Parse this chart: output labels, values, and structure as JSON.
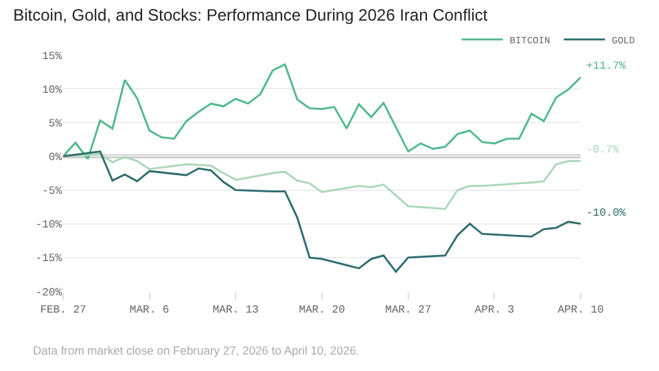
{
  "chart_data": {
    "type": "line",
    "title": "Bitcoin, Gold, and Stocks: Performance During 2026 Iran Conflict",
    "xlim": [
      "2026-02-27",
      "2026-04-10"
    ],
    "xticks": [
      {
        "value": "2026-02-27",
        "label": "FEB. 27"
      },
      {
        "value": "2026-03-06",
        "label": "MAR. 6"
      },
      {
        "value": "2026-03-13",
        "label": "MAR. 13"
      },
      {
        "value": "2026-03-20",
        "label": "MAR. 20"
      },
      {
        "value": "2026-03-27",
        "label": "MAR. 27"
      },
      {
        "value": "2026-04-03",
        "label": "APR. 3"
      },
      {
        "value": "2026-04-10",
        "label": "APR. 10"
      }
    ],
    "ylim": [
      -20,
      15
    ],
    "yticks": [
      {
        "value": -20,
        "label": "-20%"
      },
      {
        "value": -15,
        "label": "-15%"
      },
      {
        "value": -10,
        "label": "-10%"
      },
      {
        "value": -5,
        "label": "-5%"
      },
      {
        "value": 0,
        "label": "0%"
      },
      {
        "value": 5,
        "label": "5%"
      },
      {
        "value": 10,
        "label": "10%"
      },
      {
        "value": 15,
        "label": "15%"
      }
    ],
    "grid": "y",
    "legend": "top right",
    "line_style": "solid",
    "ref_lines": [
      {
        "axis": "y",
        "value": 0,
        "color": "#cccccc"
      }
    ],
    "series": [
      {
        "name": "BITCOIN",
        "color": "#4fb88a",
        "x": [
          "2026-02-27",
          "2026-02-28",
          "2026-03-01",
          "2026-03-02",
          "2026-03-03",
          "2026-03-04",
          "2026-03-05",
          "2026-03-06",
          "2026-03-07",
          "2026-03-08",
          "2026-03-09",
          "2026-03-10",
          "2026-03-11",
          "2026-03-12",
          "2026-03-13",
          "2026-03-14",
          "2026-03-15",
          "2026-03-16",
          "2026-03-17",
          "2026-03-18",
          "2026-03-19",
          "2026-03-20",
          "2026-03-21",
          "2026-03-22",
          "2026-03-23",
          "2026-03-24",
          "2026-03-25",
          "2026-03-26",
          "2026-03-27",
          "2026-03-28",
          "2026-03-29",
          "2026-03-30",
          "2026-03-31",
          "2026-04-01",
          "2026-04-02",
          "2026-04-03",
          "2026-04-04",
          "2026-04-05",
          "2026-04-06",
          "2026-04-07",
          "2026-04-08",
          "2026-04-09",
          "2026-04-10"
        ],
        "values": [
          0,
          2.0,
          -0.4,
          5.3,
          4.1,
          11.3,
          8.6,
          3.8,
          2.8,
          2.6,
          5.2,
          6.6,
          7.8,
          7.4,
          8.5,
          7.8,
          9.2,
          12.7,
          13.6,
          8.4,
          7.1,
          7.0,
          7.3,
          4.1,
          7.7,
          5.8,
          7.9,
          4.3,
          0.7,
          1.9,
          1.1,
          1.4,
          3.3,
          3.8,
          2.1,
          1.9,
          2.6,
          2.6,
          6.3,
          5.2,
          8.7,
          9.9,
          11.7
        ]
      },
      {
        "color": "#a9d7b8",
        "x": [
          "2026-02-27",
          "2026-03-02",
          "2026-03-03",
          "2026-03-04",
          "2026-03-05",
          "2026-03-06",
          "2026-03-09",
          "2026-03-10",
          "2026-03-11",
          "2026-03-12",
          "2026-03-13",
          "2026-03-16",
          "2026-03-17",
          "2026-03-18",
          "2026-03-19",
          "2026-03-20",
          "2026-03-23",
          "2026-03-24",
          "2026-03-25",
          "2026-03-26",
          "2026-03-27",
          "2026-03-30",
          "2026-03-31",
          "2026-04-01",
          "2026-04-02",
          "2026-04-06",
          "2026-04-07",
          "2026-04-08",
          "2026-04-09",
          "2026-04-10"
        ],
        "values": [
          0,
          0.3,
          -0.9,
          -0.1,
          -0.7,
          -1.9,
          -1.2,
          -1.3,
          -1.4,
          -2.5,
          -3.5,
          -2.5,
          -2.3,
          -3.6,
          -4.0,
          -5.3,
          -4.4,
          -4.6,
          -4.2,
          -5.8,
          -7.4,
          -7.8,
          -5.0,
          -4.4,
          -4.4,
          -3.9,
          -3.7,
          -1.2,
          -0.7,
          -0.7
        ]
      },
      {
        "name": "GOLD",
        "color": "#2c6b6e",
        "x": [
          "2026-02-27",
          "2026-03-02",
          "2026-03-03",
          "2026-03-04",
          "2026-03-05",
          "2026-03-06",
          "2026-03-09",
          "2026-03-10",
          "2026-03-11",
          "2026-03-12",
          "2026-03-13",
          "2026-03-16",
          "2026-03-17",
          "2026-03-18",
          "2026-03-19",
          "2026-03-20",
          "2026-03-23",
          "2026-03-24",
          "2026-03-25",
          "2026-03-26",
          "2026-03-27",
          "2026-03-30",
          "2026-03-31",
          "2026-04-01",
          "2026-04-02",
          "2026-04-06",
          "2026-04-07",
          "2026-04-08",
          "2026-04-09",
          "2026-04-10"
        ],
        "values": [
          0,
          0.7,
          -3.6,
          -2.7,
          -3.7,
          -2.2,
          -2.8,
          -1.8,
          -2.1,
          -3.8,
          -5.0,
          -5.2,
          -5.2,
          -9.1,
          -15.0,
          -15.2,
          -16.6,
          -15.2,
          -14.7,
          -17.1,
          -15.0,
          -14.7,
          -11.7,
          -10.0,
          -11.5,
          -11.9,
          -10.8,
          -10.6,
          -9.7,
          -10.0
        ]
      }
    ],
    "annotations": [
      {
        "text": "+11.7%",
        "x": "2026-04-10",
        "y": 11.7
      },
      {
        "text": "-0.7%",
        "x": "2026-04-10",
        "y": -0.7
      },
      {
        "text": "-10.0%",
        "x": "2026-04-10",
        "y": -10.0
      },
      "Data from market close on February 27, 2026 to April 10, 2026."
    ]
  }
}
